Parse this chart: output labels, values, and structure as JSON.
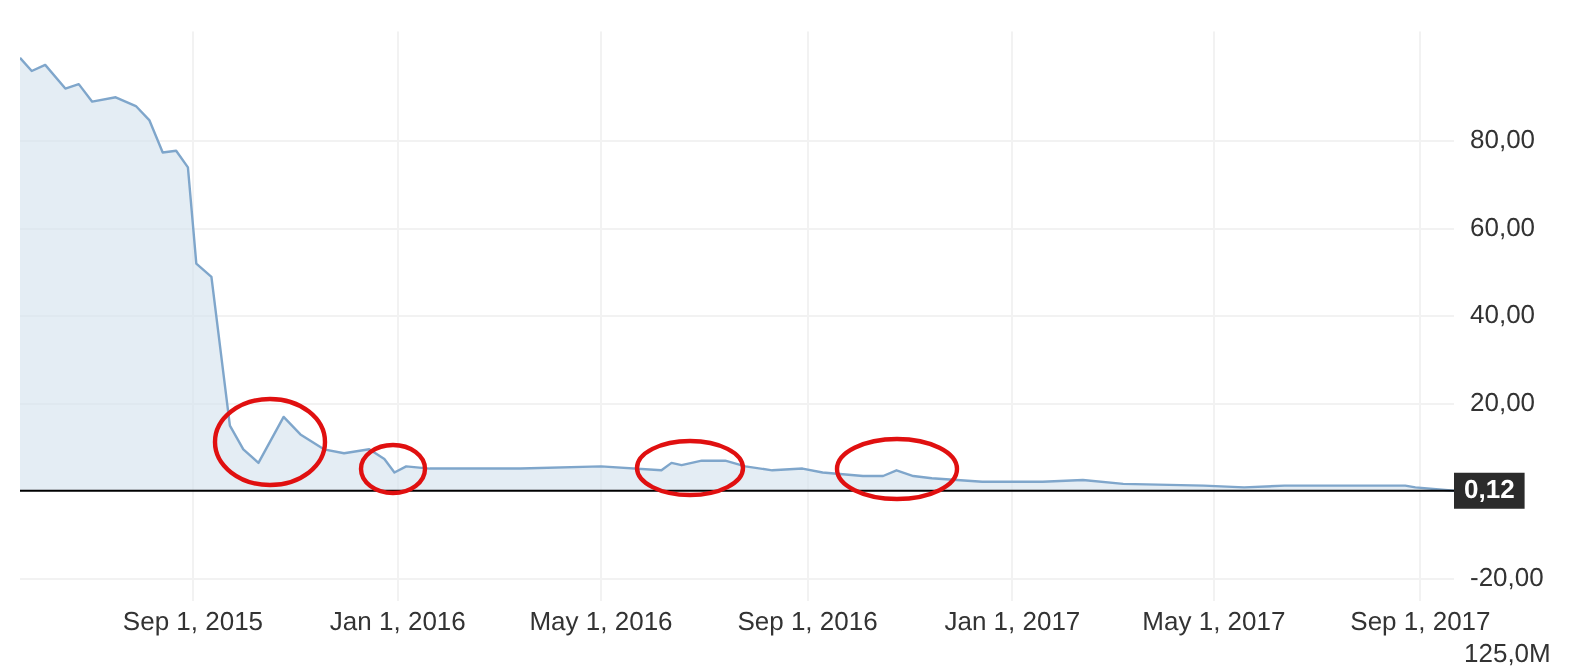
{
  "chart_data": {
    "type": "area",
    "x": [
      "2015-05-21",
      "2015-05-28",
      "2015-06-05",
      "2015-06-17",
      "2015-06-25",
      "2015-07-03",
      "2015-07-17",
      "2015-07-29",
      "2015-08-06",
      "2015-08-14",
      "2015-08-22",
      "2015-08-29",
      "2015-09-03",
      "2015-09-12",
      "2015-09-23",
      "2015-10-01",
      "2015-10-10",
      "2015-10-25",
      "2015-11-04",
      "2015-11-18",
      "2015-11-30",
      "2015-12-15",
      "2015-12-24",
      "2015-12-30",
      "2016-01-06",
      "2016-01-20",
      "2016-03-14",
      "2016-05-01",
      "2016-06-06",
      "2016-06-12",
      "2016-06-18",
      "2016-06-30",
      "2016-07-14",
      "2016-07-26",
      "2016-08-11",
      "2016-08-29",
      "2016-09-10",
      "2016-10-04",
      "2016-10-16",
      "2016-10-24",
      "2016-11-03",
      "2016-11-14",
      "2016-12-14",
      "2017-01-19",
      "2017-02-12",
      "2017-03-08",
      "2017-04-25",
      "2017-05-19",
      "2017-06-12",
      "2017-08-23",
      "2017-08-29",
      "2017-09-21"
    ],
    "series": [
      {
        "color": "#7fa6cb",
        "values": [
          99,
          96,
          97.4,
          92,
          93,
          89,
          90,
          88,
          84.8,
          77.4,
          77.8,
          74,
          52,
          49,
          15,
          9.6,
          6.5,
          17,
          13,
          9.6,
          8.7,
          9.6,
          7.4,
          4.3,
          5.7,
          5.2,
          5.2,
          5.7,
          4.8,
          6.5,
          6,
          7,
          7,
          5.7,
          4.8,
          5.2,
          4.3,
          3.5,
          3.5,
          4.8,
          3.5,
          3,
          2.2,
          2.2,
          2.6,
          1.7,
          1.3,
          0.9,
          1.3,
          1.3,
          0.9,
          0.12
        ]
      }
    ],
    "xlim": [
      "2015-05-21",
      "2017-09-21"
    ],
    "xticks": [
      {
        "value": "2015-09-01",
        "label": "Sep 1, 2015"
      },
      {
        "value": "2016-01-01",
        "label": "Jan 1, 2016"
      },
      {
        "value": "2016-05-01",
        "label": "May 1, 2016"
      },
      {
        "value": "2016-09-01",
        "label": "Sep 1, 2016"
      },
      {
        "value": "2017-01-01",
        "label": "Jan 1, 2017"
      },
      {
        "value": "2017-05-01",
        "label": "May 1, 2017"
      },
      {
        "value": "2017-09-01",
        "label": "Sep 1, 2017"
      }
    ],
    "ylim": [
      -25,
      105
    ],
    "yticks": [
      {
        "value": -20,
        "label": "-20,00"
      },
      {
        "value": 20,
        "label": "20,00"
      },
      {
        "value": 40,
        "label": "40,00"
      },
      {
        "value": 60,
        "label": "60,00"
      },
      {
        "value": 80,
        "label": "80,00"
      }
    ],
    "ref_lines": [
      {
        "axis": "y",
        "value": 0.12,
        "label": "0,12",
        "color": "#000000"
      }
    ],
    "annotations": [
      "125,0M"
    ],
    "grid": true,
    "legend": false
  }
}
